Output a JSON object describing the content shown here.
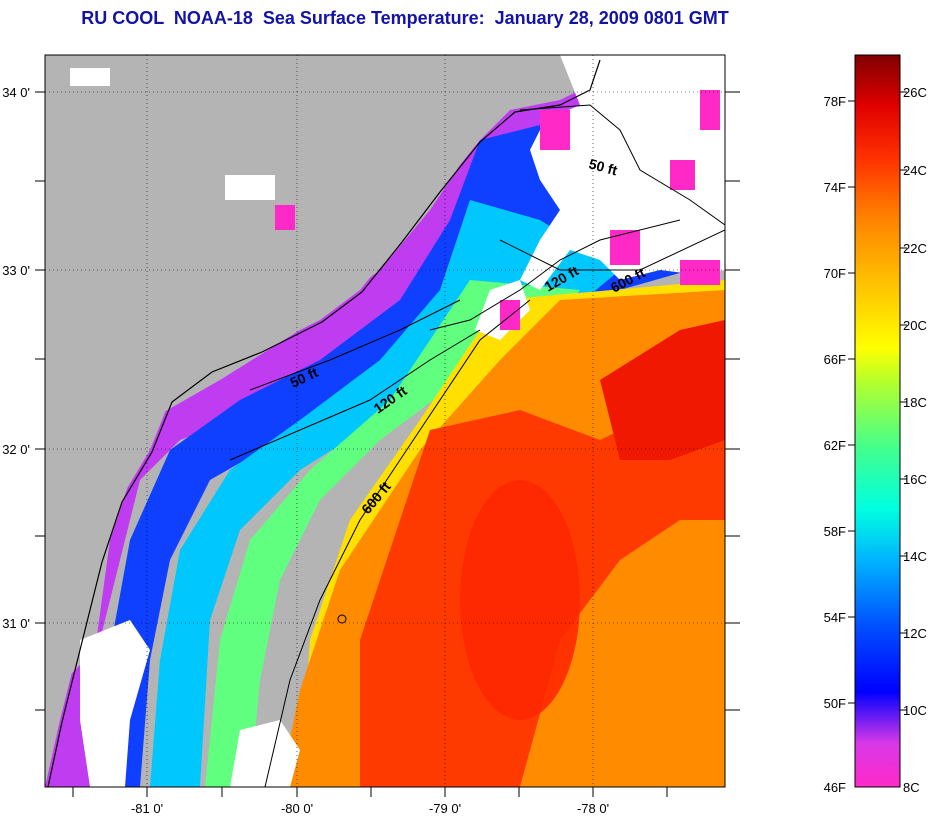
{
  "title": "RU COOL  NOAA-18  Sea Surface Temperature:  January 28, 2009 0801 GMT",
  "map": {
    "lat_labels": [
      "34 0'",
      "33 0'",
      "32 0'",
      "31 0'"
    ],
    "lon_labels": [
      "-81 0'",
      "-80 0'",
      "-79 0'",
      "-78 0'"
    ],
    "contour_labels": [
      "50 ft",
      "120 ft",
      "600 ft",
      "50 ft",
      "120 ft",
      "600 ft"
    ],
    "colors": {
      "land": "#b4b4b4",
      "cloud": "#ffffff",
      "coast": "#000000"
    }
  },
  "colorbar": {
    "fahrenheit_labels": [
      "78F",
      "74F",
      "70F",
      "66F",
      "62F",
      "58F",
      "54F",
      "50F",
      "46F"
    ],
    "celsius_labels": [
      "26C",
      "24C",
      "22C",
      "20C",
      "18C",
      "16C",
      "14C",
      "12C",
      "10C",
      "8C"
    ],
    "stops": [
      "#ff29c8",
      "#c434f0",
      "#6a1cf2",
      "#0000ff",
      "#0060ff",
      "#00c8ff",
      "#00ffd0",
      "#4cff80",
      "#b8ff30",
      "#ffff00",
      "#ffc800",
      "#ff8c00",
      "#ff4000",
      "#ff0000",
      "#c00000",
      "#800000"
    ]
  }
}
